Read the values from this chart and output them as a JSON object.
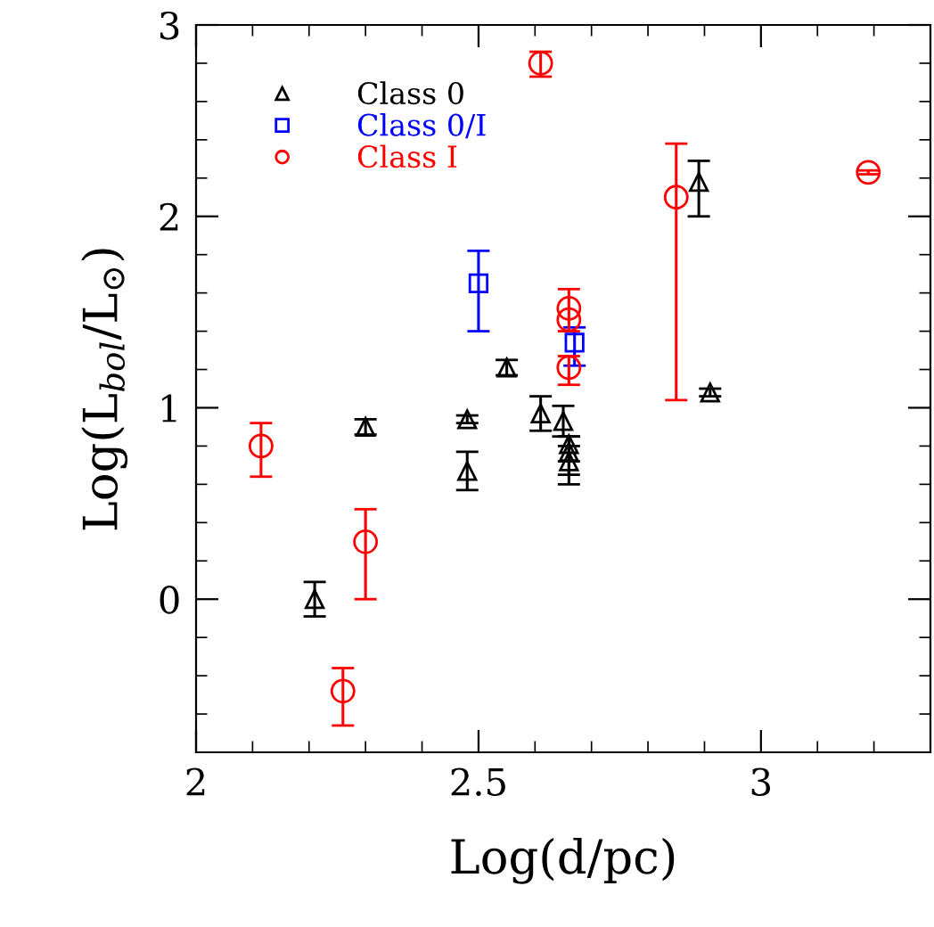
{
  "chart_data": {
    "type": "scatter",
    "xlabel": "Log(d/pc)",
    "ylabel": "Log(L$_{bol}$/L$_{⊙}$)",
    "xlim": [
      2,
      3.3
    ],
    "ylim": [
      -0.8,
      3
    ],
    "xticks": [
      2,
      {
        "value": 2.1,
        "label": null
      },
      {
        "value": 2.2,
        "label": null
      },
      {
        "value": 2.3,
        "label": null
      },
      {
        "value": 2.4,
        "label": null
      },
      2.5,
      {
        "value": 2.6,
        "label": null
      },
      {
        "value": 2.7,
        "label": null
      },
      {
        "value": 2.8,
        "label": null
      },
      {
        "value": 2.9,
        "label": null
      },
      3,
      {
        "value": 3.1,
        "label": null
      },
      {
        "value": 3.2,
        "label": null
      }
    ],
    "yticks": [
      {
        "value": -0.6,
        "label": null
      },
      {
        "value": -0.4,
        "label": null
      },
      {
        "value": -0.2,
        "label": null
      },
      0,
      {
        "value": 0.2,
        "label": null
      },
      {
        "value": 0.4,
        "label": null
      },
      {
        "value": 0.6,
        "label": null
      },
      {
        "value": 0.8,
        "label": null
      },
      1,
      {
        "value": 1.2,
        "label": null
      },
      {
        "value": 1.4,
        "label": null
      },
      {
        "value": 1.6,
        "label": null
      },
      {
        "value": 1.8,
        "label": null
      },
      2,
      {
        "value": 2.2,
        "label": null
      },
      {
        "value": 2.4,
        "label": null
      },
      {
        "value": 2.6,
        "label": null
      },
      {
        "value": 2.8,
        "label": null
      },
      3
    ],
    "grid": false,
    "legend": "top left",
    "series": [
      {
        "name": "Class 0",
        "color": "#000000",
        "marker": "triangle",
        "x": [
          2.21,
          2.3,
          2.48,
          2.48,
          2.55,
          2.61,
          2.65,
          2.66,
          2.66,
          2.66,
          2.89,
          2.91
        ],
        "values": [
          0.0,
          0.9,
          0.94,
          0.67,
          1.21,
          0.97,
          0.93,
          0.81,
          0.77,
          0.72,
          2.18,
          1.08
        ],
        "errors": [
          0.09,
          0.04,
          0.02,
          0.1,
          0.04,
          0.09,
          0.08,
          [
            0.72,
            0.85
          ],
          [
            0.65,
            0.85
          ],
          [
            0.6,
            0.8
          ],
          [
            2.0,
            2.29
          ],
          0.02
        ]
      },
      {
        "name": "Class 0/I",
        "color": "#0000ff",
        "marker": "square",
        "x": [
          2.5,
          2.67
        ],
        "values": [
          1.65,
          1.34
        ],
        "errors": [
          [
            1.4,
            1.82
          ],
          [
            1.22,
            1.42
          ]
        ]
      },
      {
        "name": "Class I",
        "color": "#ff0000",
        "marker": "circle",
        "x": [
          2.115,
          2.26,
          2.3,
          2.61,
          2.66,
          2.66,
          2.66,
          2.85,
          3.19
        ],
        "values": [
          0.8,
          -0.48,
          0.3,
          2.8,
          1.52,
          1.46,
          1.21,
          2.1,
          2.23
        ],
        "errors": [
          [
            0.64,
            0.92
          ],
          [
            -0.66,
            -0.36
          ],
          [
            0.0,
            0.47
          ],
          [
            2.73,
            2.86
          ],
          [
            1.4,
            1.62
          ],
          null,
          [
            1.12,
            1.27
          ],
          [
            1.04,
            2.38
          ],
          0.01
        ]
      }
    ]
  }
}
